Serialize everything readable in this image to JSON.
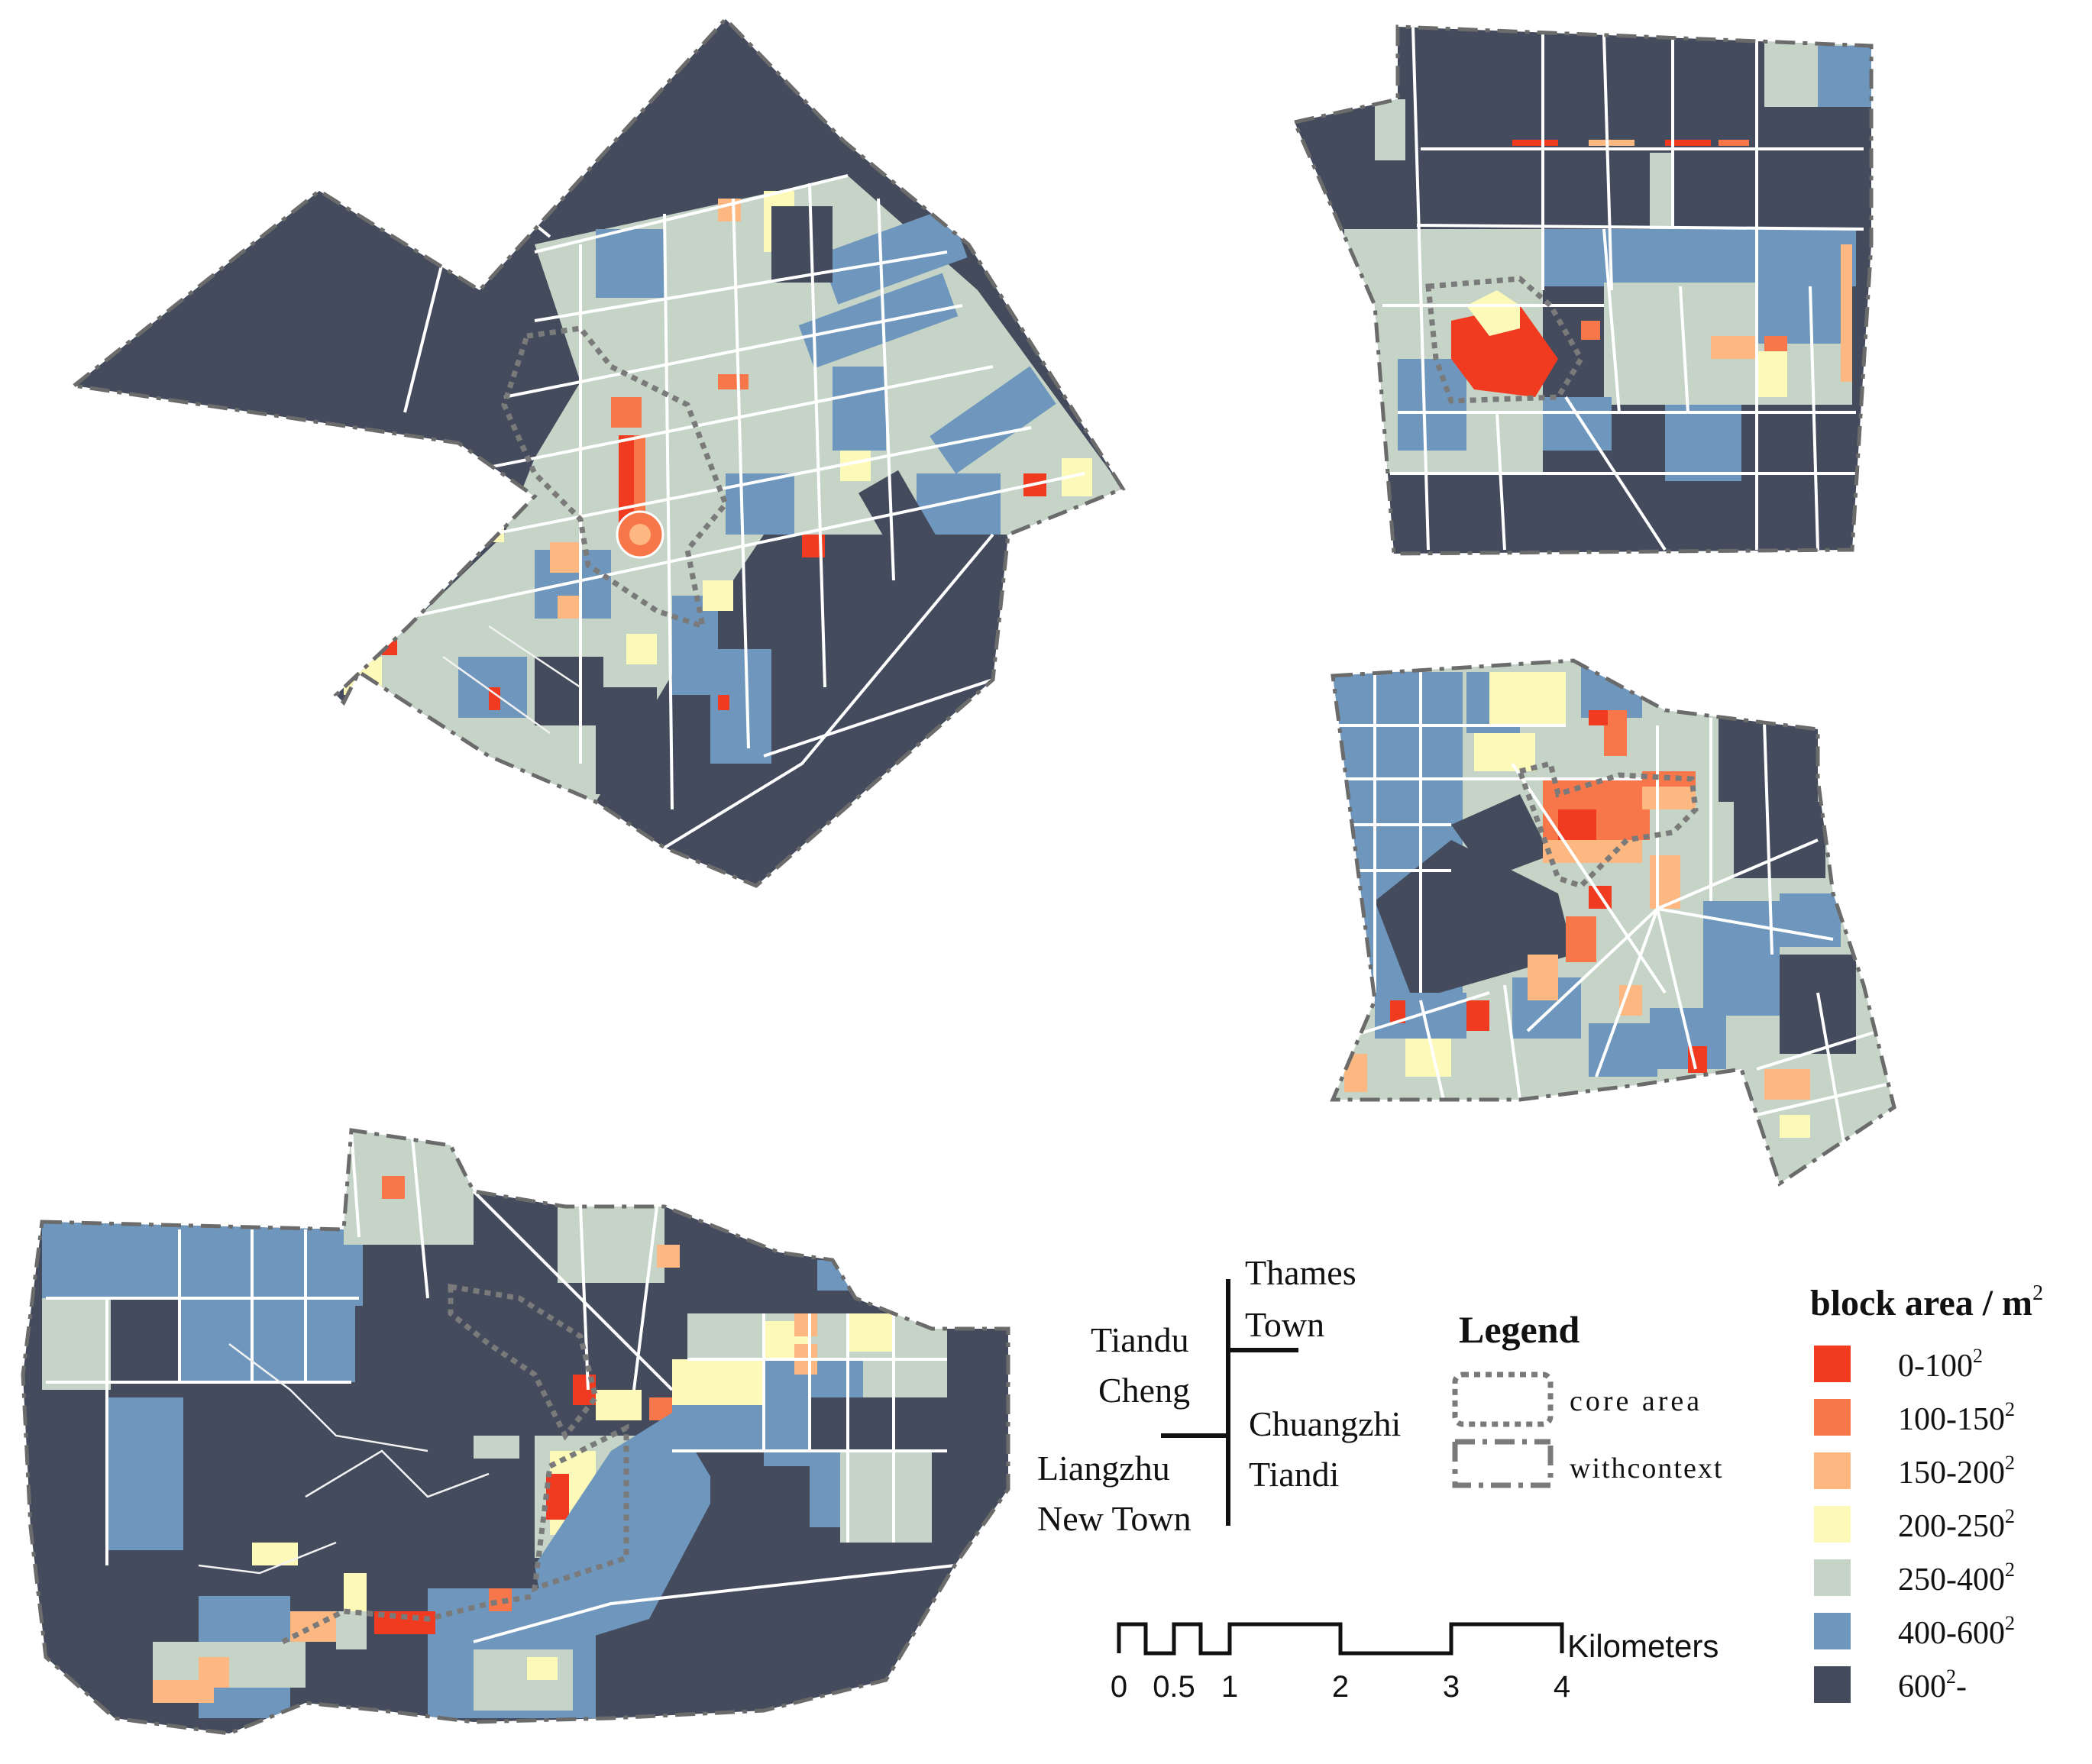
{
  "tree": {
    "labels": [
      {
        "text": "Thames"
      },
      {
        "text": "Town"
      },
      {
        "text": "Tiandu"
      },
      {
        "text": "Cheng"
      },
      {
        "text": "Chuangzhi"
      },
      {
        "text": "Tiandi"
      },
      {
        "text": "Liangzhu"
      },
      {
        "text": "New Town"
      }
    ]
  },
  "legend": {
    "title": "Legend",
    "core_label": "core area",
    "context_label": "withcontext"
  },
  "block_legend": {
    "title": "block area / m",
    "title_sup": "2",
    "classes": [
      {
        "label": "0-100",
        "sup": "2",
        "color": "#f03b20"
      },
      {
        "label": "100-150",
        "sup": "2",
        "color": "#f7774a"
      },
      {
        "label": "150-200",
        "sup": "2",
        "color": "#fcb880"
      },
      {
        "label": "200-250",
        "sup": "2",
        "color": "#fdf9b8"
      },
      {
        "label": "250-400",
        "sup": "2",
        "color": "#c5d4c6"
      },
      {
        "label": "400-600",
        "sup": "2",
        "color": "#6f97bd"
      },
      {
        "label": "600",
        "sup": "2",
        "suffix": "-",
        "color": "#434b5d"
      }
    ]
  },
  "scale": {
    "ticks": [
      "0",
      "0.5",
      "1",
      "2",
      "3",
      "4"
    ],
    "unit": "Kilometers"
  }
}
